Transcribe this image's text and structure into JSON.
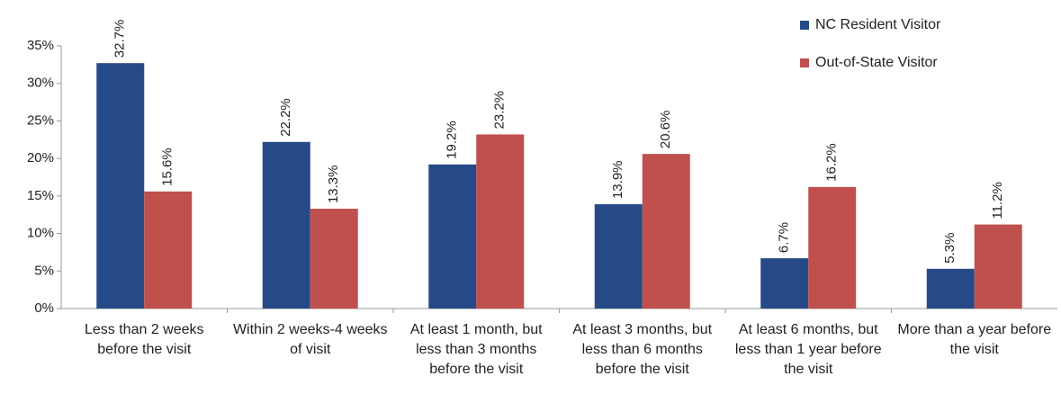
{
  "chart_data": {
    "type": "bar",
    "categories": [
      "Less than 2 weeks before the visit",
      "Within 2 weeks-4 weeks of visit",
      "At least 1 month, but less than 3 months before the visit",
      "At least 3 months, but less than 6 months before the visit",
      "At least 6 months, but less than 1 year before the visit",
      "More than a year before the visit"
    ],
    "series": [
      {
        "name": "NC Resident Visitor",
        "color": "#254a87",
        "values": [
          32.7,
          22.2,
          19.2,
          13.9,
          6.7,
          5.3
        ],
        "value_labels": [
          "32.7%",
          "22.2%",
          "19.2%",
          "13.9%",
          "6.7%",
          "5.3%"
        ]
      },
      {
        "name": "Out-of-State Visitor",
        "color": "#c0504d",
        "values": [
          15.6,
          13.3,
          23.2,
          20.6,
          16.2,
          11.2
        ],
        "value_labels": [
          "15.6%",
          "13.3%",
          "23.2%",
          "20.6%",
          "16.2%",
          "11.2%"
        ]
      }
    ],
    "ylim": [
      0,
      35
    ],
    "yticks": [
      {
        "value": 0,
        "label": "0%"
      },
      {
        "value": 5,
        "label": "5%"
      },
      {
        "value": 10,
        "label": "10%"
      },
      {
        "value": 15,
        "label": "15%"
      },
      {
        "value": 20,
        "label": "20%"
      },
      {
        "value": 25,
        "label": "25%"
      },
      {
        "value": 30,
        "label": "30%"
      },
      {
        "value": 35,
        "label": "35%"
      }
    ],
    "legend": "top-right"
  }
}
